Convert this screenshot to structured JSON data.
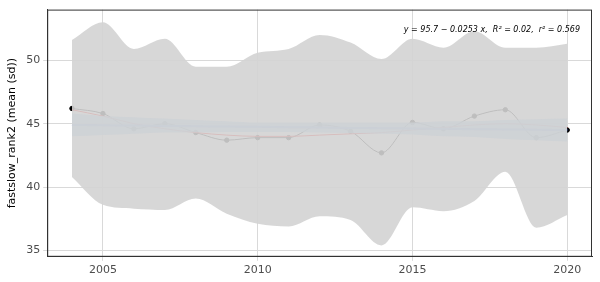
{
  "chart_data": {
    "type": "line",
    "y_label": "fastslow_rank2 (mean (sd))",
    "annotation": "y = 95.7 − 0.0253 x,  R² = 0.02,  r² = 0.569",
    "x": [
      2004,
      2005,
      2006,
      2007,
      2008,
      2009,
      2010,
      2011,
      2012,
      2013,
      2014,
      2015,
      2016,
      2017,
      2018,
      2019,
      2020
    ],
    "series": [
      {
        "color": "#000000",
        "marker": "circle",
        "line_style": "solid",
        "values": [
          46.2,
          45.8,
          44.6,
          45.0,
          44.3,
          43.7,
          43.9,
          43.9,
          44.9,
          44.4,
          42.7,
          45.1,
          44.6,
          45.6,
          46.1,
          43.9,
          44.5
        ]
      },
      {
        "color": "#ff0000",
        "marker": "none",
        "line_style": "solid",
        "values": [
          46.1,
          45.6,
          45.0,
          44.6,
          44.3,
          44.1,
          44.0,
          44.0,
          44.1,
          44.2,
          44.3,
          44.5,
          44.7,
          44.9,
          45.0,
          44.9,
          44.7
        ]
      },
      {
        "color": "#3366ff",
        "marker": "none",
        "line_style": "solid",
        "values": [
          44.9,
          44.87,
          44.85,
          44.82,
          44.8,
          44.77,
          44.75,
          44.72,
          44.7,
          44.67,
          44.65,
          44.62,
          44.6,
          44.57,
          44.55,
          44.52,
          44.5
        ]
      }
    ],
    "sd_band": {
      "color": "#d3d3d3",
      "upper": [
        51.6,
        53.0,
        50.9,
        51.7,
        49.5,
        49.5,
        50.6,
        50.9,
        52.0,
        51.4,
        50.1,
        51.7,
        51.0,
        52.3,
        51.0,
        51.0,
        51.3
      ],
      "lower": [
        40.8,
        38.6,
        38.3,
        38.2,
        39.1,
        37.9,
        37.1,
        36.9,
        37.7,
        37.4,
        35.4,
        38.4,
        38.1,
        38.9,
        41.2,
        36.8,
        37.8
      ]
    },
    "ci_band": {
      "color": "#9ec5f0",
      "upper": [
        45.8,
        45.6,
        45.5,
        45.4,
        45.3,
        45.2,
        45.1,
        45.1,
        45.1,
        45.1,
        45.1,
        45.1,
        45.2,
        45.2,
        45.3,
        45.35,
        45.4
      ],
      "lower": [
        44.0,
        44.1,
        44.2,
        44.3,
        44.3,
        44.35,
        44.35,
        44.35,
        44.3,
        44.25,
        44.2,
        44.15,
        44.0,
        43.95,
        43.8,
        43.7,
        43.6
      ]
    },
    "xlim": [
      2003.2,
      2020.8
    ],
    "ylim": [
      34.5,
      54.0
    ],
    "xticks": [
      2005,
      2010,
      2015,
      2020
    ],
    "yticks": [
      35,
      40,
      45,
      50
    ],
    "grid": true
  }
}
